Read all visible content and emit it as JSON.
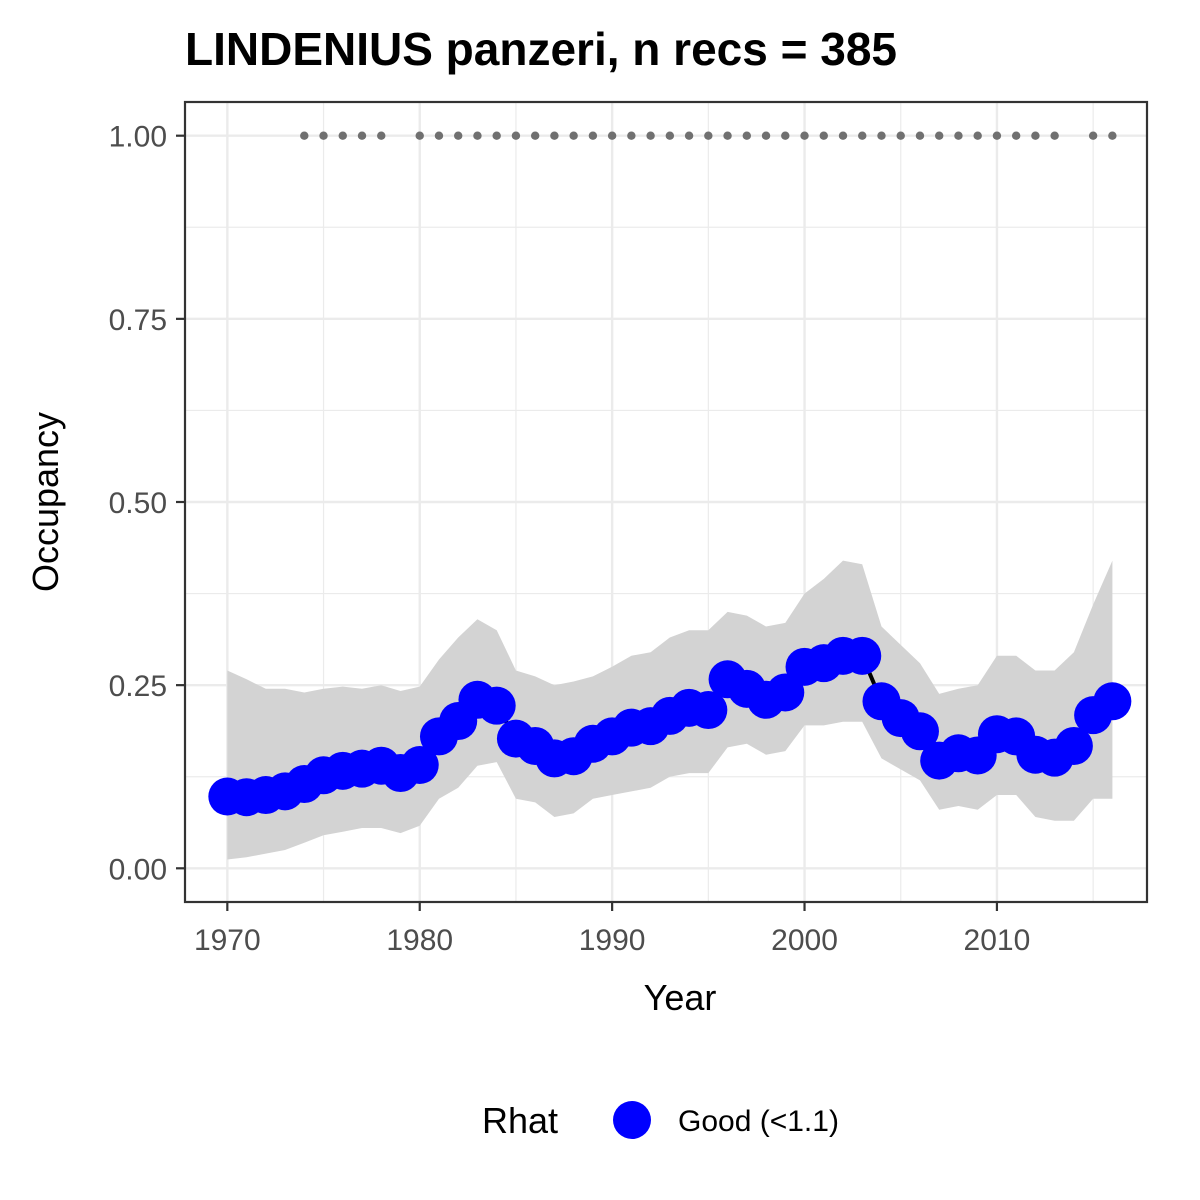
{
  "chart_data": {
    "type": "line",
    "title": "LINDENIUS panzeri, n recs = 385",
    "xlabel": "Year",
    "ylabel": "Occupancy",
    "xlim": [
      1967.8,
      2017.8
    ],
    "ylim": [
      -0.046,
      1.046
    ],
    "x_ticks": [
      1970,
      1980,
      1990,
      2000,
      2010
    ],
    "y_ticks": [
      0.0,
      0.25,
      0.5,
      0.75,
      1.0
    ],
    "y_tick_labels": [
      "0.00",
      "0.25",
      "0.50",
      "0.75",
      "1.00"
    ],
    "grid": true,
    "colors": {
      "series": "#0000ff",
      "line": "#000000",
      "ribbon": "#d3d3d3",
      "record_dots": "#707070",
      "grid": "#ebebeb",
      "panel_border": "#333333"
    },
    "series": [
      {
        "name": "Good (<1.1)",
        "x": [
          1970,
          1971,
          1972,
          1973,
          1974,
          1975,
          1976,
          1977,
          1978,
          1979,
          1980,
          1981,
          1982,
          1983,
          1984,
          1985,
          1986,
          1987,
          1988,
          1989,
          1990,
          1991,
          1992,
          1993,
          1994,
          1995,
          1996,
          1997,
          1998,
          1999,
          2000,
          2001,
          2002,
          2003,
          2004,
          2005,
          2006,
          2007,
          2008,
          2009,
          2010,
          2011,
          2012,
          2013,
          2014,
          2015,
          2016
        ],
        "values": [
          0.098,
          0.097,
          0.1,
          0.105,
          0.115,
          0.127,
          0.133,
          0.136,
          0.14,
          0.13,
          0.141,
          0.18,
          0.201,
          0.23,
          0.222,
          0.177,
          0.167,
          0.15,
          0.153,
          0.17,
          0.18,
          0.192,
          0.194,
          0.208,
          0.219,
          0.216,
          0.258,
          0.245,
          0.23,
          0.24,
          0.275,
          0.28,
          0.29,
          0.29,
          0.228,
          0.205,
          0.187,
          0.147,
          0.157,
          0.154,
          0.183,
          0.18,
          0.155,
          0.151,
          0.167,
          0.209,
          0.228
        ]
      }
    ],
    "ribbon": {
      "lower": [
        0.012,
        0.015,
        0.02,
        0.025,
        0.035,
        0.045,
        0.05,
        0.055,
        0.055,
        0.048,
        0.058,
        0.095,
        0.11,
        0.14,
        0.145,
        0.095,
        0.09,
        0.07,
        0.075,
        0.095,
        0.1,
        0.105,
        0.11,
        0.125,
        0.13,
        0.13,
        0.165,
        0.17,
        0.155,
        0.16,
        0.195,
        0.195,
        0.2,
        0.2,
        0.15,
        0.135,
        0.12,
        0.08,
        0.085,
        0.08,
        0.1,
        0.1,
        0.07,
        0.065,
        0.065,
        0.095,
        0.095
      ],
      "upper": [
        0.27,
        0.258,
        0.245,
        0.245,
        0.24,
        0.245,
        0.248,
        0.245,
        0.25,
        0.242,
        0.248,
        0.285,
        0.315,
        0.34,
        0.325,
        0.27,
        0.262,
        0.25,
        0.255,
        0.262,
        0.275,
        0.29,
        0.295,
        0.315,
        0.325,
        0.325,
        0.35,
        0.345,
        0.33,
        0.335,
        0.375,
        0.395,
        0.42,
        0.415,
        0.33,
        0.305,
        0.28,
        0.238,
        0.245,
        0.25,
        0.29,
        0.29,
        0.27,
        0.27,
        0.295,
        0.36,
        0.42
      ]
    },
    "records": {
      "y": 1.0,
      "years": [
        1974,
        1975,
        1976,
        1977,
        1978,
        1980,
        1981,
        1982,
        1983,
        1984,
        1985,
        1986,
        1987,
        1988,
        1989,
        1990,
        1991,
        1992,
        1993,
        1994,
        1995,
        1996,
        1997,
        1998,
        1999,
        2000,
        2001,
        2002,
        2003,
        2004,
        2005,
        2006,
        2007,
        2008,
        2009,
        2010,
        2011,
        2012,
        2013,
        2015,
        2016
      ]
    },
    "legend": {
      "title": "Rhat",
      "position": "bottom",
      "items": [
        {
          "label": "Good (<1.1)",
          "color": "#0000ff"
        }
      ]
    }
  }
}
